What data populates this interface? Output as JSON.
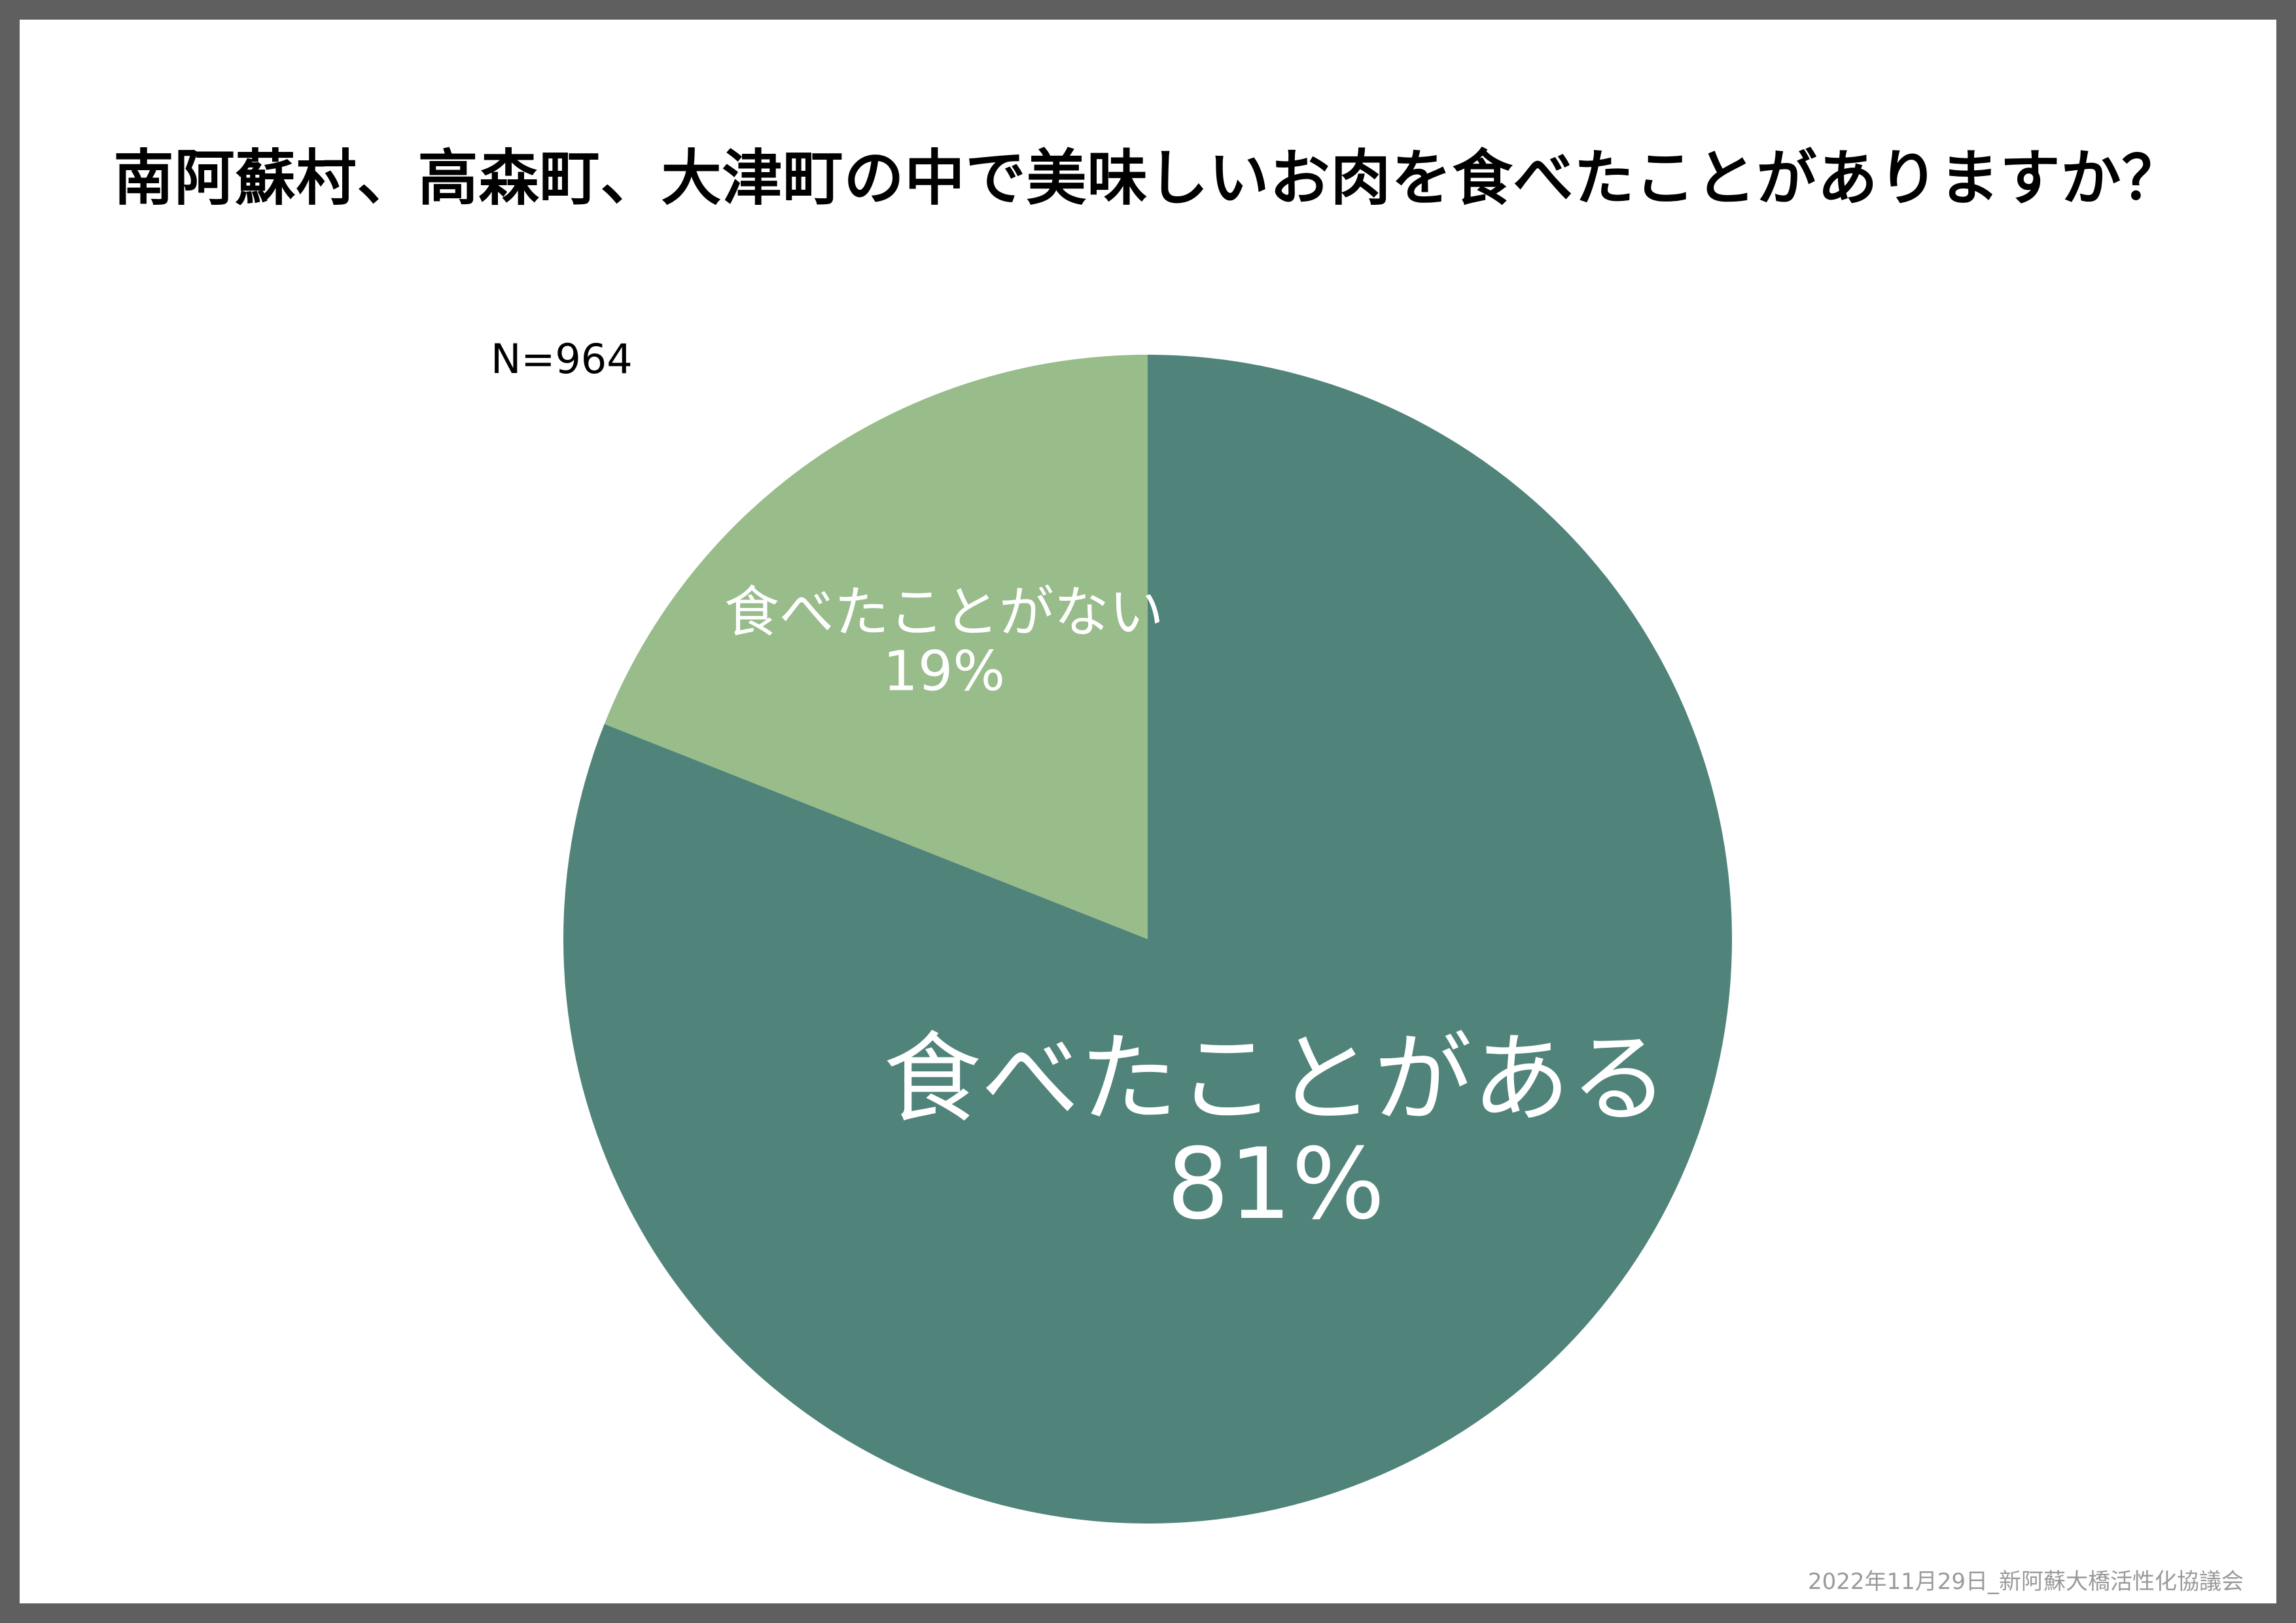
{
  "footer": "2022年11月29日_新阿蘇大橋活性化協議会",
  "chart_data": {
    "type": "pie",
    "title": "南阿蘇村、高森町、大津町の中で美味しいお肉を食べたことがありますか？",
    "sample_size": "N=964",
    "slices": [
      {
        "label": "食べたことがある",
        "value": 81,
        "value_label": "81%",
        "color": "#50837a"
      },
      {
        "label": "食べたことがない",
        "value": 19,
        "value_label": "19%",
        "color": "#98bc8a"
      }
    ]
  }
}
